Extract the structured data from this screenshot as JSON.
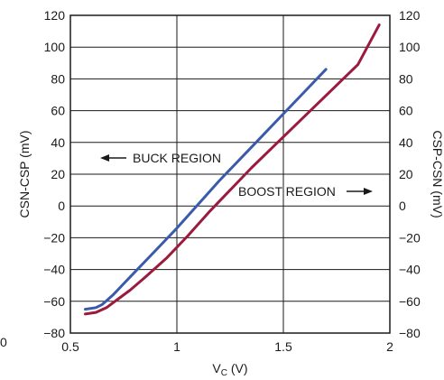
{
  "chart_data": {
    "type": "line",
    "xlabel_main": "V",
    "xlabel_sub": "C",
    "xlabel_unit": " (V)",
    "ylabel_left": "CSN-CSP (mV)",
    "ylabel_right": "CSP-CSN (mV)",
    "xlim": [
      0.5,
      2.0
    ],
    "ylim": [
      -80,
      120
    ],
    "x_ticks": [
      0.5,
      1.0,
      1.5,
      2.0
    ],
    "x_tick_labels": [
      "0.5",
      "1",
      "1.5",
      "2"
    ],
    "y_ticks": [
      -80,
      -60,
      -40,
      -20,
      0,
      20,
      40,
      60,
      80,
      100,
      120
    ],
    "y_tick_labels": [
      "−80",
      "−60",
      "−40",
      "−20",
      "0",
      "20",
      "40",
      "60",
      "80",
      "100",
      "120"
    ],
    "grid": true,
    "series": [
      {
        "axis": "left",
        "color": "#3a5bab",
        "x": [
          0.57,
          0.62,
          0.65,
          0.7,
          0.75,
          0.8,
          0.9,
          1.0,
          1.1,
          1.2,
          1.3,
          1.4,
          1.5,
          1.6,
          1.7
        ],
        "y": [
          -65,
          -64,
          -62,
          -56,
          -49,
          -42,
          -28,
          -14,
          1,
          16,
          30,
          44,
          58,
          72,
          86
        ]
      },
      {
        "axis": "right",
        "color": "#9b1b3e",
        "x": [
          0.57,
          0.62,
          0.67,
          0.72,
          0.78,
          0.85,
          0.95,
          1.05,
          1.15,
          1.25,
          1.35,
          1.45,
          1.55,
          1.65,
          1.75,
          1.85,
          1.95
        ],
        "y": [
          -68,
          -67,
          -64,
          -59,
          -53,
          -45,
          -33,
          -19,
          -4,
          10,
          24,
          37,
          50,
          63,
          76,
          89,
          114
        ]
      }
    ],
    "annotations": {
      "buck": "BUCK REGION",
      "boost": "BOOST REGION"
    }
  },
  "stray_label": "0"
}
